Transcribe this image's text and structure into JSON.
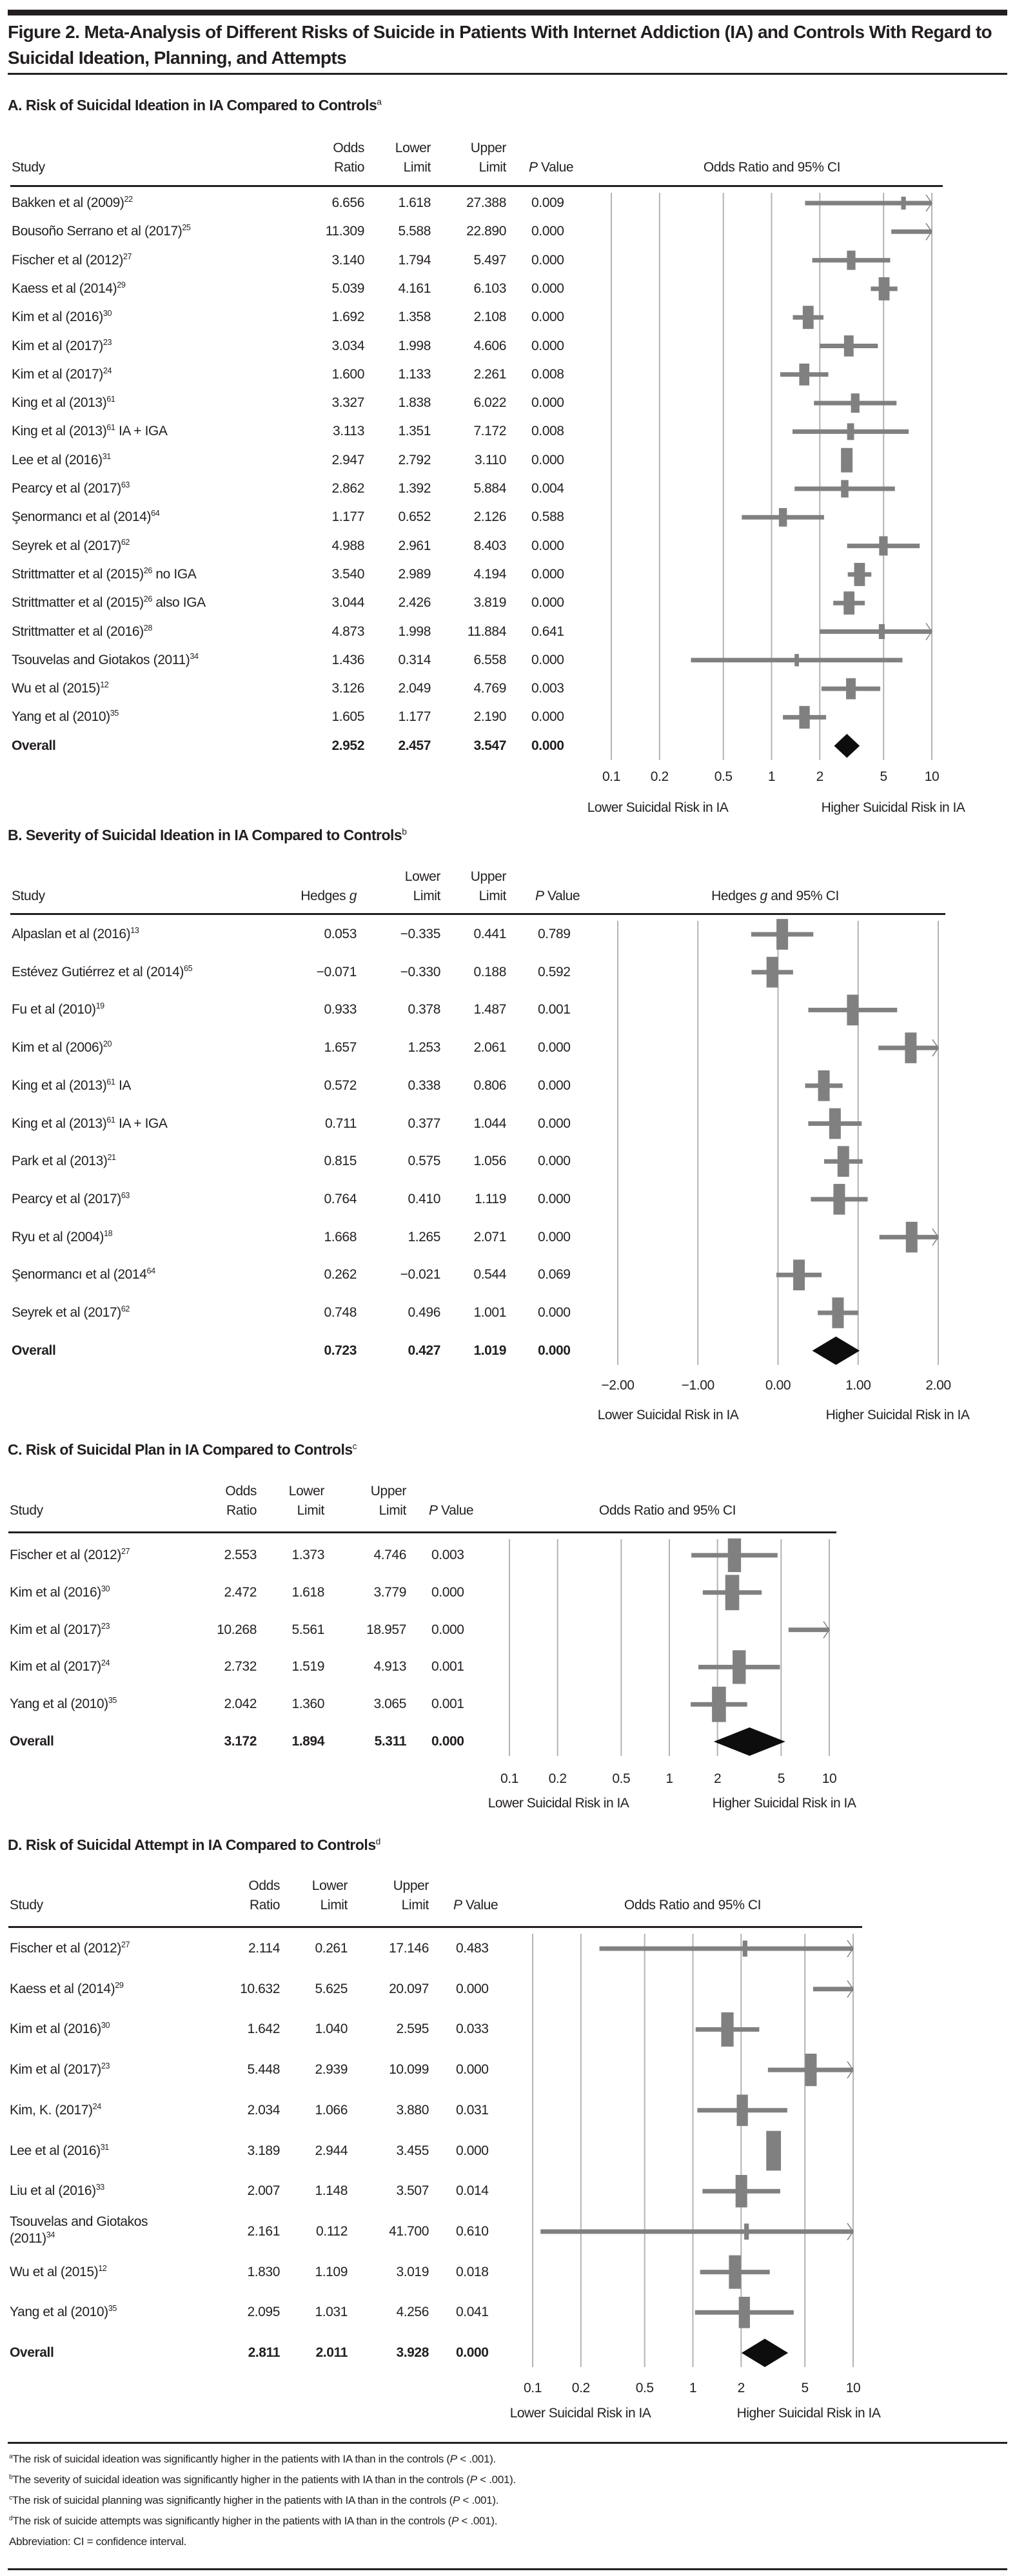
{
  "figure": {
    "title": "Figure 2. Meta-Analysis of Different Risks of Suicide in Patients With Internet Addiction (IA) and Controls With Regard to Suicidal Ideation, Planning, and Attempts"
  },
  "colors": {
    "marker": "#808080",
    "summary": "#0d0d0d",
    "grid": "#b3b3b3",
    "text": "#231f20"
  },
  "chart_data": [
    {
      "id": "A",
      "type": "forest",
      "title": "A. Risk of Suicidal Ideation in IA Compared to Controls",
      "title_sup": "a",
      "columns": [
        "Study",
        "Odds Ratio",
        "Lower Limit",
        "Upper Limit",
        "P Value"
      ],
      "plot_header": "Odds Ratio and 95% CI",
      "scale": "log",
      "xlim": [
        0.1,
        10
      ],
      "ticks": [
        0.1,
        0.2,
        0.5,
        1,
        2,
        5,
        10
      ],
      "tick_labels": [
        "0.1",
        "0.2",
        "0.5",
        "1",
        "2",
        "5",
        "10"
      ],
      "xlabel_left": "Lower Suicidal Risk in IA",
      "xlabel_right": "Higher Suicidal Risk in IA",
      "rows": [
        {
          "study": "Bakken et al (2009)",
          "ref": "22",
          "suffix": "",
          "est": "6.656",
          "lo": "1.618",
          "hi": "27.388",
          "p": "0.009",
          "e": 6.656,
          "l": 1.618,
          "h": 27.388,
          "w": 0.3
        },
        {
          "study": "Bousoño Serrano et al (2017)",
          "ref": "25",
          "suffix": "",
          "est": "11.309",
          "lo": "5.588",
          "hi": "22.890",
          "p": "0.000",
          "e": 11.309,
          "l": 5.588,
          "h": 22.89,
          "w": 0.5
        },
        {
          "study": "Fischer et al (2012)",
          "ref": "27",
          "suffix": "",
          "est": "3.140",
          "lo": "1.794",
          "hi": "5.497",
          "p": "0.000",
          "e": 3.14,
          "l": 1.794,
          "h": 5.497,
          "w": 0.55
        },
        {
          "study": "Kaess et al (2014)",
          "ref": "29",
          "suffix": "",
          "est": "5.039",
          "lo": "4.161",
          "hi": "6.103",
          "p": "0.000",
          "e": 5.039,
          "l": 4.161,
          "h": 6.103,
          "w": 0.7
        },
        {
          "study": "Kim et al (2016)",
          "ref": "30",
          "suffix": "",
          "est": "1.692",
          "lo": "1.358",
          "hi": "2.108",
          "p": "0.000",
          "e": 1.692,
          "l": 1.358,
          "h": 2.108,
          "w": 0.7
        },
        {
          "study": "Kim et al (2017)",
          "ref": "23",
          "suffix": "",
          "est": "3.034",
          "lo": "1.998",
          "hi": "4.606",
          "p": "0.000",
          "e": 3.034,
          "l": 1.998,
          "h": 4.606,
          "w": 0.62
        },
        {
          "study": "Kim et al (2017)",
          "ref": "24",
          "suffix": "",
          "est": "1.600",
          "lo": "1.133",
          "hi": "2.261",
          "p": "0.008",
          "e": 1.6,
          "l": 1.133,
          "h": 2.261,
          "w": 0.65
        },
        {
          "study": "King et al (2013)",
          "ref": "61",
          "suffix": "",
          "est": "3.327",
          "lo": "1.838",
          "hi": "6.022",
          "p": "0.000",
          "e": 3.327,
          "l": 1.838,
          "h": 6.022,
          "w": 0.55
        },
        {
          "study": "King et al (2013)",
          "ref": "61",
          "suffix": " IA + IGA",
          "est": "3.113",
          "lo": "1.351",
          "hi": "7.172",
          "p": "0.008",
          "e": 3.113,
          "l": 1.351,
          "h": 7.172,
          "w": 0.45
        },
        {
          "study": "Lee et al (2016)",
          "ref": "31",
          "suffix": "",
          "est": "2.947",
          "lo": "2.792",
          "hi": "3.110",
          "p": "0.000",
          "e": 2.947,
          "l": 2.792,
          "h": 3.11,
          "w": 0.75
        },
        {
          "study": "Pearcy et al (2017)",
          "ref": "63",
          "suffix": "",
          "est": "2.862",
          "lo": "1.392",
          "hi": "5.884",
          "p": "0.004",
          "e": 2.862,
          "l": 1.392,
          "h": 5.884,
          "w": 0.48
        },
        {
          "study": "Şenormancı et al (2014)",
          "ref": "64",
          "suffix": "",
          "est": "1.177",
          "lo": "0.652",
          "hi": "2.126",
          "p": "0.588",
          "e": 1.177,
          "l": 0.652,
          "h": 2.126,
          "w": 0.52
        },
        {
          "study": "Seyrek et al (2017)",
          "ref": "62",
          "suffix": "",
          "est": "4.988",
          "lo": "2.961",
          "hi": "8.403",
          "p": "0.000",
          "e": 4.988,
          "l": 2.961,
          "h": 8.403,
          "w": 0.55
        },
        {
          "study": "Strittmatter et al (2015)",
          "ref": "26",
          "suffix": " no IGA",
          "est": "3.540",
          "lo": "2.989",
          "hi": "4.194",
          "p": "0.000",
          "e": 3.54,
          "l": 2.989,
          "h": 4.194,
          "w": 0.7
        },
        {
          "study": "Strittmatter et al (2015)",
          "ref": "26",
          "suffix": " also IGA",
          "est": "3.044",
          "lo": "2.426",
          "hi": "3.819",
          "p": "0.000",
          "e": 3.044,
          "l": 2.426,
          "h": 3.819,
          "w": 0.7
        },
        {
          "study": "Strittmatter et al (2016)",
          "ref": "28",
          "suffix": "",
          "est": "4.873",
          "lo": "1.998",
          "hi": "11.884",
          "p": "0.641",
          "e": 4.873,
          "l": 1.998,
          "h": 11.884,
          "w": 0.38
        },
        {
          "study": "Tsouvelas and Giotakos (2011)",
          "ref": "34",
          "suffix": "",
          "est": "1.436",
          "lo": "0.314",
          "hi": "6.558",
          "p": "0.000",
          "e": 1.436,
          "l": 0.314,
          "h": 6.558,
          "w": 0.28
        },
        {
          "study": "Wu et al (2015)",
          "ref": "12",
          "suffix": "",
          "est": "3.126",
          "lo": "2.049",
          "hi": "4.769",
          "p": "0.003",
          "e": 3.126,
          "l": 2.049,
          "h": 4.769,
          "w": 0.62
        },
        {
          "study": "Yang et al (2010)",
          "ref": "35",
          "suffix": "",
          "est": "1.605",
          "lo": "1.177",
          "hi": "2.190",
          "p": "0.000",
          "e": 1.605,
          "l": 1.177,
          "h": 2.19,
          "w": 0.68
        }
      ],
      "overall": {
        "study": "Overall",
        "est": "2.952",
        "lo": "2.457",
        "hi": "3.547",
        "p": "0.000",
        "e": 2.952,
        "l": 2.457,
        "h": 3.547
      }
    },
    {
      "id": "B",
      "type": "forest",
      "title": "B. Severity of Suicidal Ideation in IA Compared to Controls",
      "title_sup": "b",
      "columns": [
        "Study",
        "Hedges g",
        "Lower Limit",
        "Upper Limit",
        "P Value"
      ],
      "plot_header": "Hedges g and 95% CI",
      "scale": "linear",
      "xlim": [
        -2,
        2
      ],
      "ticks": [
        -2,
        -1,
        0,
        1,
        2
      ],
      "tick_labels": [
        "−2.00",
        "−1.00",
        "0.00",
        "1.00",
        "2.00"
      ],
      "xlabel_left": "Lower Suicidal Risk in IA",
      "xlabel_right": "Higher Suicidal Risk in IA",
      "rows": [
        {
          "study": "Alpaslan et al (2016)",
          "ref": "13",
          "suffix": "",
          "est": "0.053",
          "lo": "−0.335",
          "hi": "0.441",
          "p": "0.789",
          "e": 0.053,
          "l": -0.335,
          "h": 0.441,
          "w": 0.75
        },
        {
          "study": "Estévez Gutiérrez et al (2014)",
          "ref": "65",
          "suffix": "",
          "est": "−0.071",
          "lo": "−0.330",
          "hi": "0.188",
          "p": "0.592",
          "e": -0.071,
          "l": -0.33,
          "h": 0.188,
          "w": 0.75
        },
        {
          "study": "Fu et al (2010)",
          "ref": "19",
          "suffix": "",
          "est": "0.933",
          "lo": "0.378",
          "hi": "1.487",
          "p": "0.001",
          "e": 0.933,
          "l": 0.378,
          "h": 1.487,
          "w": 0.75
        },
        {
          "study": "Kim et al (2006)",
          "ref": "20",
          "suffix": "",
          "est": "1.657",
          "lo": "1.253",
          "hi": "2.061",
          "p": "0.000",
          "e": 1.657,
          "l": 1.253,
          "h": 2.061,
          "w": 0.75
        },
        {
          "study": "King et al (2013)",
          "ref": "61",
          "suffix": " IA",
          "est": "0.572",
          "lo": "0.338",
          "hi": "0.806",
          "p": "0.000",
          "e": 0.572,
          "l": 0.338,
          "h": 0.806,
          "w": 0.75
        },
        {
          "study": "King et al (2013)",
          "ref": "61",
          "suffix": " IA + IGA",
          "est": "0.711",
          "lo": "0.377",
          "hi": "1.044",
          "p": "0.000",
          "e": 0.711,
          "l": 0.377,
          "h": 1.044,
          "w": 0.75
        },
        {
          "study": "Park et al (2013)",
          "ref": "21",
          "suffix": "",
          "est": "0.815",
          "lo": "0.575",
          "hi": "1.056",
          "p": "0.000",
          "e": 0.815,
          "l": 0.575,
          "h": 1.056,
          "w": 0.75
        },
        {
          "study": "Pearcy et al (2017)",
          "ref": "63",
          "suffix": "",
          "est": "0.764",
          "lo": "0.410",
          "hi": "1.119",
          "p": "0.000",
          "e": 0.764,
          "l": 0.41,
          "h": 1.119,
          "w": 0.75
        },
        {
          "study": "Ryu et al (2004)",
          "ref": "18",
          "suffix": "",
          "est": "1.668",
          "lo": "1.265",
          "hi": "2.071",
          "p": "0.000",
          "e": 1.668,
          "l": 1.265,
          "h": 2.071,
          "w": 0.75
        },
        {
          "study": "Şenormancı et al (2014",
          "ref": "64",
          "suffix": "",
          "est": "0.262",
          "lo": "−0.021",
          "hi": "0.544",
          "p": "0.069",
          "e": 0.262,
          "l": -0.021,
          "h": 0.544,
          "w": 0.75
        },
        {
          "study": "Seyrek et al (2017)",
          "ref": "62",
          "suffix": "",
          "est": "0.748",
          "lo": "0.496",
          "hi": "1.001",
          "p": "0.000",
          "e": 0.748,
          "l": 0.496,
          "h": 1.001,
          "w": 0.75
        }
      ],
      "overall": {
        "study": "Overall",
        "est": "0.723",
        "lo": "0.427",
        "hi": "1.019",
        "p": "0.000",
        "e": 0.723,
        "l": 0.427,
        "h": 1.019
      }
    },
    {
      "id": "C",
      "type": "forest",
      "title": "C. Risk of Suicidal Plan in IA Compared to Controls",
      "title_sup": "c",
      "columns": [
        "Study",
        "Odds Ratio",
        "Lower Limit",
        "Upper Limit",
        "P Value"
      ],
      "plot_header": "Odds Ratio and 95% CI",
      "scale": "log",
      "xlim": [
        0.1,
        10
      ],
      "ticks": [
        0.1,
        0.2,
        0.5,
        1,
        2,
        5,
        10
      ],
      "tick_labels": [
        "0.1",
        "0.2",
        "0.5",
        "1",
        "2",
        "5",
        "10"
      ],
      "xlabel_left": "Lower Suicidal Risk in IA",
      "xlabel_right": "Higher Suicidal Risk in IA",
      "rows": [
        {
          "study": "Fischer et al (2012)",
          "ref": "27",
          "suffix": "",
          "est": "2.553",
          "lo": "1.373",
          "hi": "4.746",
          "p": "0.003",
          "e": 2.553,
          "l": 1.373,
          "h": 4.746,
          "w": 0.85
        },
        {
          "study": "Kim et al (2016)",
          "ref": "30",
          "suffix": "",
          "est": "2.472",
          "lo": "1.618",
          "hi": "3.779",
          "p": "0.000",
          "e": 2.472,
          "l": 1.618,
          "h": 3.779,
          "w": 0.9
        },
        {
          "study": "Kim et al (2017)",
          "ref": "23",
          "suffix": "",
          "est": "10.268",
          "lo": "5.561",
          "hi": "18.957",
          "p": "0.000",
          "e": 10.268,
          "l": 5.561,
          "h": 18.957,
          "w": 0.5
        },
        {
          "study": "Kim et al (2017)",
          "ref": "24",
          "suffix": "",
          "est": "2.732",
          "lo": "1.519",
          "hi": "4.913",
          "p": "0.001",
          "e": 2.732,
          "l": 1.519,
          "h": 4.913,
          "w": 0.85
        },
        {
          "study": "Yang et al (2010)",
          "ref": "35",
          "suffix": "",
          "est": "2.042",
          "lo": "1.360",
          "hi": "3.065",
          "p": "0.001",
          "e": 2.042,
          "l": 1.36,
          "h": 3.065,
          "w": 0.9
        }
      ],
      "overall": {
        "study": "Overall",
        "est": "3.172",
        "lo": "1.894",
        "hi": "5.311",
        "p": "0.000",
        "e": 3.172,
        "l": 1.894,
        "h": 5.311
      }
    },
    {
      "id": "D",
      "type": "forest",
      "title": "D. Risk of Suicidal Attempt in IA Compared to Controls",
      "title_sup": "d",
      "columns": [
        "Study",
        "Odds Ratio",
        "Lower Limit",
        "Upper Limit",
        "P Value"
      ],
      "plot_header": "Odds Ratio and 95% CI",
      "scale": "log",
      "xlim": [
        0.1,
        10
      ],
      "ticks": [
        0.1,
        0.2,
        0.5,
        1,
        2,
        5,
        10
      ],
      "tick_labels": [
        "0.1",
        "0.2",
        "0.5",
        "1",
        "2",
        "5",
        "10"
      ],
      "xlabel_left": "Lower Suicidal Risk in IA",
      "xlabel_right": "Higher Suicidal Risk in IA",
      "rows": [
        {
          "study": "Fischer et al (2012)",
          "ref": "27",
          "suffix": "",
          "est": "2.114",
          "lo": "0.261",
          "hi": "17.146",
          "p": "0.483",
          "e": 2.114,
          "l": 0.261,
          "h": 17.146,
          "w": 0.3
        },
        {
          "study": "Kaess et al (2014)",
          "ref": "29",
          "suffix": "",
          "est": "10.632",
          "lo": "5.625",
          "hi": "20.097",
          "p": "0.000",
          "e": 10.632,
          "l": 5.625,
          "h": 20.097,
          "w": 0.5
        },
        {
          "study": "Kim et al (2016)",
          "ref": "30",
          "suffix": "",
          "est": "1.642",
          "lo": "1.040",
          "hi": "2.595",
          "p": "0.033",
          "e": 1.642,
          "l": 1.04,
          "h": 2.595,
          "w": 0.8
        },
        {
          "study": "Kim et al (2017)",
          "ref": "23",
          "suffix": "",
          "est": "5.448",
          "lo": "2.939",
          "hi": "10.099",
          "p": "0.000",
          "e": 5.448,
          "l": 2.939,
          "h": 10.099,
          "w": 0.75
        },
        {
          "study": "Kim, K. (2017)",
          "ref": "24",
          "suffix": "",
          "est": "2.034",
          "lo": "1.066",
          "hi": "3.880",
          "p": "0.031",
          "e": 2.034,
          "l": 1.066,
          "h": 3.88,
          "w": 0.72
        },
        {
          "study": "Lee et al (2016)",
          "ref": "31",
          "suffix": "",
          "est": "3.189",
          "lo": "2.944",
          "hi": "3.455",
          "p": "0.000",
          "e": 3.189,
          "l": 2.944,
          "h": 3.455,
          "w": 0.95
        },
        {
          "study": "Liu et al (2016)",
          "ref": "33",
          "suffix": "",
          "est": "2.007",
          "lo": "1.148",
          "hi": "3.507",
          "p": "0.014",
          "e": 2.007,
          "l": 1.148,
          "h": 3.507,
          "w": 0.75
        },
        {
          "study": "Tsouvelas and Giotakos",
          "study_line2": "(2011)",
          "ref": "34",
          "suffix": "",
          "est": "2.161",
          "lo": "0.112",
          "hi": "41.700",
          "p": "0.610",
          "e": 2.161,
          "l": 0.112,
          "h": 41.7,
          "w": 0.3
        },
        {
          "study": "Wu et al (2015)",
          "ref": "12",
          "suffix": "",
          "est": "1.830",
          "lo": "1.109",
          "hi": "3.019",
          "p": "0.018",
          "e": 1.83,
          "l": 1.109,
          "h": 3.019,
          "w": 0.78
        },
        {
          "study": "Yang et al (2010)",
          "ref": "35",
          "suffix": "",
          "est": "2.095",
          "lo": "1.031",
          "hi": "4.256",
          "p": "0.041",
          "e": 2.095,
          "l": 1.031,
          "h": 4.256,
          "w": 0.72
        }
      ],
      "overall": {
        "study": "Overall",
        "est": "2.811",
        "lo": "2.011",
        "hi": "3.928",
        "p": "0.000",
        "e": 2.811,
        "l": 2.011,
        "h": 3.928
      }
    }
  ],
  "footnotes": [
    {
      "mark": "a",
      "text": "The risk of suicidal ideation was significantly higher in the patients with IA than in the controls (",
      "p": "P",
      "tail": " < .001)."
    },
    {
      "mark": "b",
      "text": "The severity of suicidal ideation was significantly higher in the patients with IA than in the controls (",
      "p": "P",
      "tail": " < .001)."
    },
    {
      "mark": "c",
      "text": "The risk of suicidal planning was significantly higher in the patients with IA than in the controls (",
      "p": "P",
      "tail": " < .001)."
    },
    {
      "mark": "d",
      "text": "The risk of suicide attempts was significantly higher in the patients with IA than in the controls (",
      "p": "P",
      "tail": " < .001)."
    }
  ],
  "abbreviation": "Abbreviation: CI = confidence interval."
}
